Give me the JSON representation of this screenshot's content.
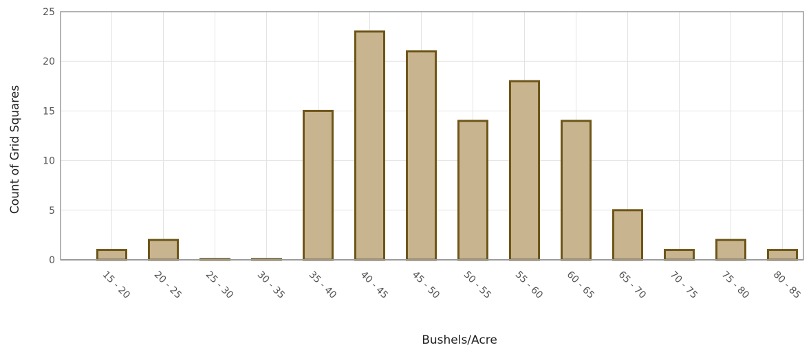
{
  "chart_data": {
    "type": "bar",
    "xlabel": "Bushels/Acre",
    "ylabel": "Count of Grid Squares",
    "ylim": [
      0,
      25
    ],
    "yticks": [
      0,
      5,
      10,
      15,
      20,
      25
    ],
    "grid": true,
    "categories": [
      "15 - 20",
      "20 - 25",
      "25 - 30",
      "30 - 35",
      "35 - 40",
      "40 - 45",
      "45 - 50",
      "50 - 55",
      "55 - 60",
      "60 - 65",
      "65 - 70",
      "70 - 75",
      "75 - 80",
      "80 - 85"
    ],
    "values": [
      1,
      2,
      0,
      0,
      15,
      23,
      21,
      14,
      18,
      14,
      5,
      1,
      2,
      1
    ],
    "colors": {
      "bar_fill": "#c8b48e",
      "bar_stroke": "#6e5618"
    }
  }
}
